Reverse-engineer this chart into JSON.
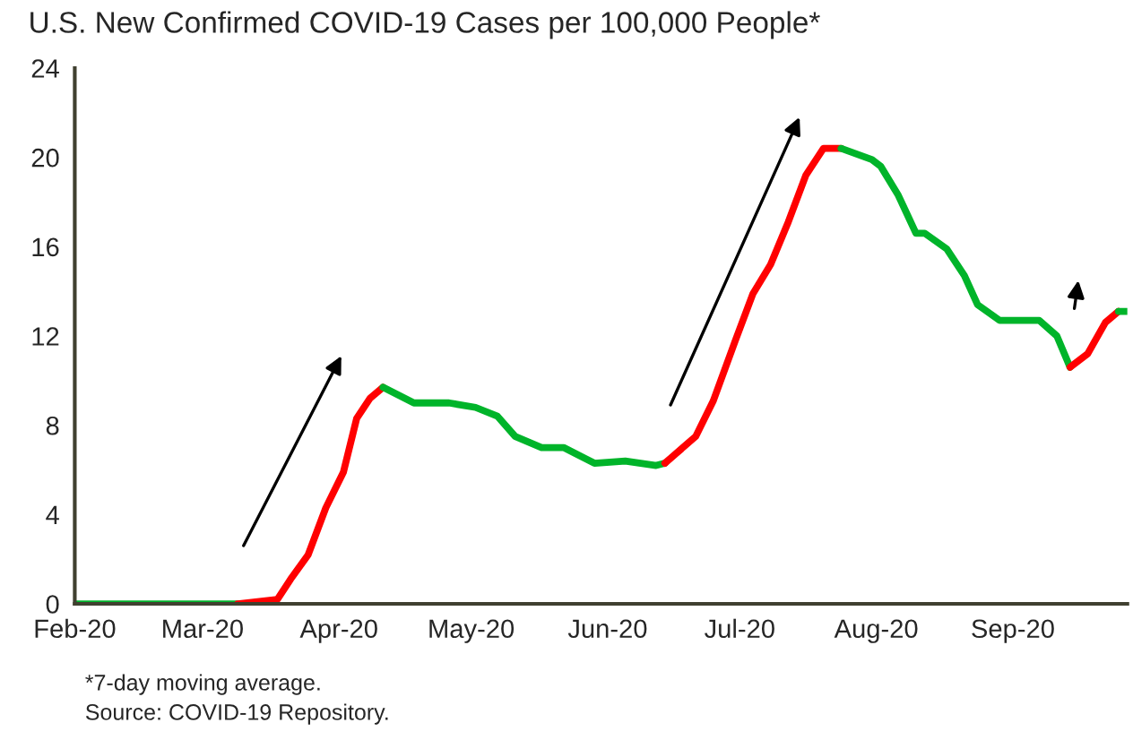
{
  "chart_data": {
    "type": "line",
    "title": "U.S. New Confirmed COVID-19 Cases per 100,000 People*",
    "xlim": [
      "2020-02-01",
      "2020-09-27"
    ],
    "xticks": [
      {
        "value": "2020-02-01",
        "label": "Feb-20"
      },
      {
        "value": "2020-03-01",
        "label": "Mar-20"
      },
      {
        "value": "2020-04-01",
        "label": "Apr-20"
      },
      {
        "value": "2020-05-01",
        "label": "May-20"
      },
      {
        "value": "2020-06-01",
        "label": "Jun-20"
      },
      {
        "value": "2020-07-01",
        "label": "Jul-20"
      },
      {
        "value": "2020-08-01",
        "label": "Aug-20"
      },
      {
        "value": "2020-09-01",
        "label": "Sep-20"
      }
    ],
    "ylim": [
      0,
      24
    ],
    "yticks": [
      0,
      4,
      8,
      12,
      16,
      20,
      24
    ],
    "grid": false,
    "series": [
      {
        "color": "#00b42a",
        "x": [
          "2020-02-01",
          "2020-02-15",
          "2020-03-01",
          "2020-03-09"
        ],
        "values": [
          0,
          0,
          0,
          0
        ]
      },
      {
        "color": "#ff0000",
        "x": [
          "2020-03-09",
          "2020-03-18",
          "2020-03-21",
          "2020-03-25",
          "2020-03-29",
          "2020-04-02",
          "2020-04-05",
          "2020-04-08",
          "2020-04-11"
        ],
        "values": [
          0,
          0.2,
          1.1,
          2.2,
          4.3,
          5.9,
          8.3,
          9.2,
          9.7
        ]
      },
      {
        "color": "#00b42a",
        "x": [
          "2020-04-11",
          "2020-04-18",
          "2020-04-26",
          "2020-05-02",
          "2020-05-07",
          "2020-05-11",
          "2020-05-17",
          "2020-05-22",
          "2020-05-29",
          "2020-06-05",
          "2020-06-12",
          "2020-06-14"
        ],
        "values": [
          9.7,
          9.0,
          9.0,
          8.8,
          8.4,
          7.5,
          7.0,
          7.0,
          6.3,
          6.4,
          6.2,
          6.3
        ]
      },
      {
        "color": "#ff0000",
        "x": [
          "2020-06-14",
          "2020-06-21",
          "2020-06-25",
          "2020-06-30",
          "2020-07-04",
          "2020-07-08",
          "2020-07-12",
          "2020-07-16",
          "2020-07-20",
          "2020-07-24"
        ],
        "values": [
          6.3,
          7.5,
          9.1,
          11.8,
          13.9,
          15.2,
          17.1,
          19.2,
          20.4,
          20.4
        ]
      },
      {
        "color": "#00b42a",
        "x": [
          "2020-07-24",
          "2020-07-31",
          "2020-08-02",
          "2020-08-06",
          "2020-08-10",
          "2020-08-12",
          "2020-08-17",
          "2020-08-21",
          "2020-08-24",
          "2020-08-29",
          "2020-09-03",
          "2020-09-07",
          "2020-09-11",
          "2020-09-14"
        ],
        "values": [
          20.4,
          19.9,
          19.6,
          18.3,
          16.6,
          16.6,
          15.9,
          14.7,
          13.4,
          12.7,
          12.7,
          12.7,
          12.0,
          10.6
        ]
      },
      {
        "color": "#ff0000",
        "x": [
          "2020-09-14",
          "2020-09-18",
          "2020-09-22",
          "2020-09-25"
        ],
        "values": [
          10.6,
          11.2,
          12.6,
          13.1
        ]
      },
      {
        "color": "#00b42a",
        "x": [
          "2020-09-25",
          "2020-09-27"
        ],
        "values": [
          13.1,
          13.1
        ]
      }
    ],
    "annotations": [
      "*7-day moving average.",
      "Source: COVID-19 Repository."
    ]
  }
}
